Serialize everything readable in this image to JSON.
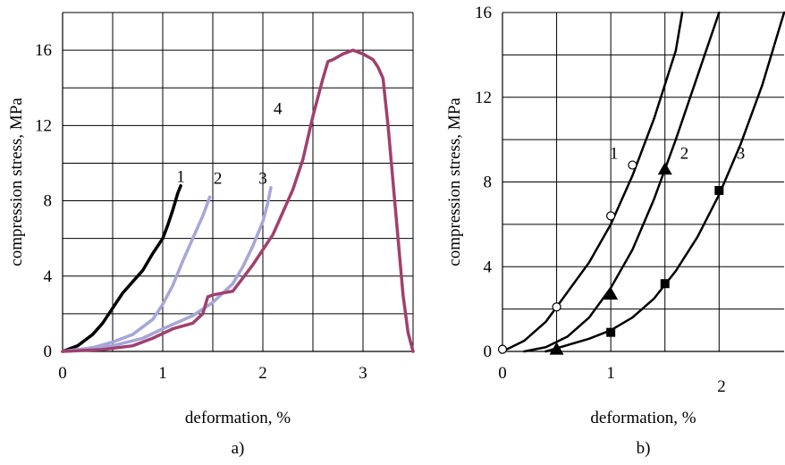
{
  "chart_data": [
    {
      "type": "line",
      "panel_label": "a)",
      "xlabel": "deformation, %",
      "ylabel": "compression stress, MPa",
      "xlim": [
        0,
        3.5
      ],
      "ylim": [
        0,
        18
      ],
      "x_ticks": [
        0,
        1,
        2,
        3
      ],
      "y_ticks": [
        0,
        4,
        8,
        12,
        16
      ],
      "x_gridlines": [
        0.5,
        1,
        1.5,
        2,
        2.5,
        3,
        3.5
      ],
      "y_gridlines": [
        2,
        4,
        6,
        8,
        10,
        12,
        14,
        16,
        18
      ],
      "grid": true,
      "series": [
        {
          "name": "1",
          "color": "#000000",
          "label_at": [
            1.18,
            9.0
          ],
          "x": [
            0.0,
            0.15,
            0.3,
            0.4,
            0.5,
            0.6,
            0.7,
            0.8,
            0.9,
            1.0,
            1.05,
            1.1,
            1.15,
            1.18
          ],
          "y": [
            0.0,
            0.3,
            0.9,
            1.5,
            2.3,
            3.1,
            3.7,
            4.3,
            5.2,
            6.0,
            6.7,
            7.5,
            8.4,
            8.8
          ]
        },
        {
          "name": "2",
          "color": "#a6a6d8",
          "label_at": [
            1.55,
            8.9
          ],
          "x": [
            0.0,
            0.3,
            0.5,
            0.7,
            0.9,
            1.0,
            1.1,
            1.2,
            1.3,
            1.4,
            1.47
          ],
          "y": [
            0.0,
            0.2,
            0.5,
            0.9,
            1.7,
            2.5,
            3.5,
            4.8,
            6.0,
            7.2,
            8.2
          ]
        },
        {
          "name": "3",
          "color": "#a6a6d8",
          "label_at": [
            2.0,
            8.9
          ],
          "x": [
            0.0,
            0.5,
            0.8,
            1.0,
            1.3,
            1.5,
            1.7,
            1.8,
            1.9,
            2.0,
            2.05,
            2.08
          ],
          "y": [
            0.0,
            0.3,
            0.7,
            1.2,
            1.9,
            2.6,
            3.6,
            4.5,
            5.6,
            6.9,
            7.9,
            8.7
          ]
        },
        {
          "name": "4",
          "color": "#a0406e",
          "label_at": [
            2.15,
            12.6
          ],
          "x": [
            0.0,
            0.4,
            0.7,
            0.9,
            1.1,
            1.3,
            1.4,
            1.45,
            1.5,
            1.7,
            1.9,
            2.1,
            2.3,
            2.4,
            2.5,
            2.6,
            2.65,
            2.7,
            2.8,
            2.9,
            3.0,
            3.1,
            3.15,
            3.2,
            3.25,
            3.3,
            3.35,
            3.4,
            3.45,
            3.5
          ],
          "y": [
            0.0,
            0.1,
            0.3,
            0.7,
            1.2,
            1.5,
            2.0,
            2.9,
            3.0,
            3.2,
            4.6,
            6.2,
            8.6,
            10.2,
            12.5,
            14.5,
            15.4,
            15.5,
            15.8,
            16.0,
            15.8,
            15.5,
            15.1,
            14.5,
            12.0,
            9.0,
            6.0,
            3.0,
            1.0,
            0.0
          ]
        }
      ]
    },
    {
      "type": "line",
      "panel_label": "b)",
      "xlabel": "deformation, %",
      "ylabel": "compression stress, MPa",
      "xlim": [
        0,
        2.6
      ],
      "ylim": [
        0,
        16
      ],
      "x_ticks": [
        0,
        1
      ],
      "x_tick_extra_label": "2",
      "y_ticks": [
        0,
        4,
        8,
        12,
        16
      ],
      "x_gridlines": [
        0.5,
        1,
        1.5,
        2
      ],
      "y_gridlines": [
        2,
        4,
        6,
        8,
        10,
        12,
        14,
        16
      ],
      "grid": true,
      "series": [
        {
          "name": "1",
          "color": "#000000",
          "marker": "circle-open",
          "label_at": [
            1.03,
            9.1
          ],
          "points_x": [
            0.0,
            0.5,
            1.0,
            1.2
          ],
          "points_y": [
            0.1,
            2.1,
            6.4,
            8.8
          ],
          "curve_x": [
            0.0,
            0.2,
            0.4,
            0.6,
            0.8,
            1.0,
            1.2,
            1.4,
            1.6,
            1.66
          ],
          "curve_y": [
            0.0,
            0.5,
            1.4,
            2.8,
            4.2,
            6.0,
            8.3,
            11.0,
            14.2,
            16.0
          ]
        },
        {
          "name": "2",
          "color": "#000000",
          "marker": "triangle",
          "label_at": [
            1.68,
            9.1
          ],
          "points_x": [
            0.5,
            1.0,
            1.5
          ],
          "points_y": [
            0.1,
            2.7,
            8.6
          ],
          "curve_x": [
            0.2,
            0.4,
            0.6,
            0.8,
            1.0,
            1.2,
            1.4,
            1.6,
            1.8,
            2.0
          ],
          "curve_y": [
            0.0,
            0.2,
            0.7,
            1.6,
            3.0,
            4.8,
            7.2,
            10.0,
            13.0,
            16.0
          ]
        },
        {
          "name": "3",
          "color": "#000000",
          "marker": "square",
          "label_at": [
            2.2,
            9.1
          ],
          "points_x": [
            1.0,
            1.5,
            2.0
          ],
          "points_y": [
            0.9,
            3.2,
            7.6
          ],
          "curve_x": [
            0.4,
            0.6,
            0.8,
            1.0,
            1.2,
            1.4,
            1.6,
            1.8,
            2.0,
            2.2,
            2.4,
            2.6
          ],
          "curve_y": [
            0.0,
            0.3,
            0.6,
            1.0,
            1.6,
            2.5,
            3.8,
            5.4,
            7.4,
            9.8,
            12.6,
            16.0
          ]
        }
      ]
    }
  ]
}
